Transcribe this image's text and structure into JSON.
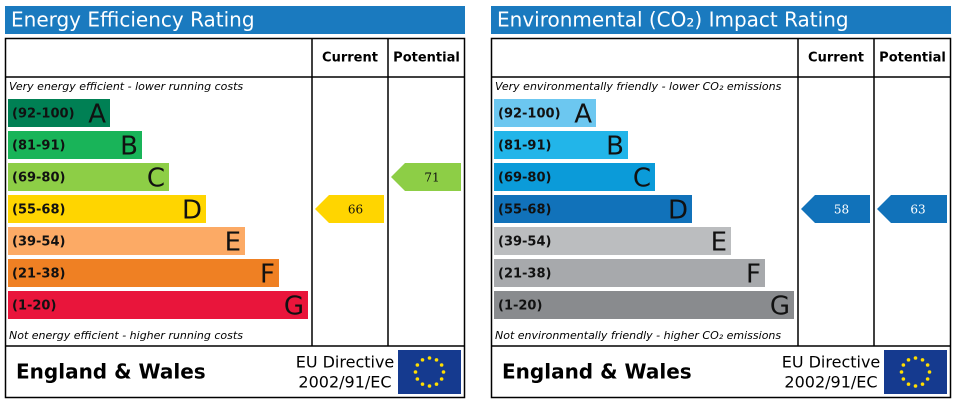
{
  "chart_data": [
    {
      "type": "epc",
      "title": "Energy Efficiency Rating",
      "top_note": "Very energy efficient - lower running costs",
      "bottom_note": "Not energy efficient - higher running costs",
      "bands": [
        {
          "range": "(92-100)",
          "letter": "A",
          "color": "#008054"
        },
        {
          "range": "(81-91)",
          "letter": "B",
          "color": "#19b459"
        },
        {
          "range": "(69-80)",
          "letter": "C",
          "color": "#8dce46"
        },
        {
          "range": "(55-68)",
          "letter": "D",
          "color": "#ffd500"
        },
        {
          "range": "(39-54)",
          "letter": "E",
          "color": "#fcaa65"
        },
        {
          "range": "(21-38)",
          "letter": "F",
          "color": "#ef8023"
        },
        {
          "range": "(1-20)",
          "letter": "G",
          "color": "#e9153b"
        }
      ],
      "series": [
        {
          "name": "Current",
          "values": [
            66
          ]
        },
        {
          "name": "Potential",
          "values": [
            71
          ]
        }
      ],
      "region": "England & Wales",
      "directive": [
        "EU Directive",
        "2002/91/EC"
      ]
    },
    {
      "type": "epc",
      "title": "Environmental (CO₂) Impact Rating",
      "top_note": "Very environmentally friendly - lower CO₂ emissions",
      "bottom_note": "Not environmentally friendly - higher CO₂ emissions",
      "bands": [
        {
          "range": "(92-100)",
          "letter": "A",
          "color": "#6cc7f0"
        },
        {
          "range": "(81-91)",
          "letter": "B",
          "color": "#22b5e9"
        },
        {
          "range": "(69-80)",
          "letter": "C",
          "color": "#0b9bd9"
        },
        {
          "range": "(55-68)",
          "letter": "D",
          "color": "#1172ba"
        },
        {
          "range": "(39-54)",
          "letter": "E",
          "color": "#bbbdbf"
        },
        {
          "range": "(21-38)",
          "letter": "F",
          "color": "#a7a9ac"
        },
        {
          "range": "(1-20)",
          "letter": "G",
          "color": "#898b8e"
        }
      ],
      "series": [
        {
          "name": "Current",
          "values": [
            58
          ]
        },
        {
          "name": "Potential",
          "values": [
            63
          ]
        }
      ],
      "region": "England & Wales",
      "directive": [
        "EU Directive",
        "2002/91/EC"
      ]
    }
  ]
}
